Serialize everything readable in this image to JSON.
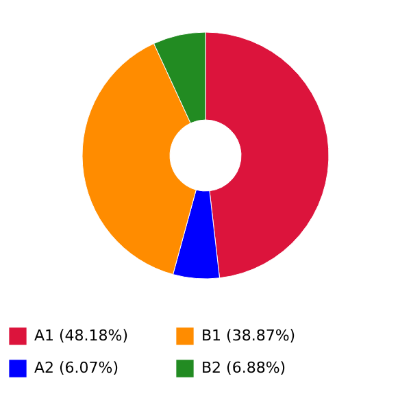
{
  "chart_data": {
    "type": "donut",
    "categories": [
      "A1 (48.18%)",
      "A2 (6.07%)",
      "B1 (38.87%)",
      "B2 (6.88%)"
    ],
    "values": [
      48.18,
      6.07,
      38.87,
      6.88
    ],
    "colors": [
      "#dc143c",
      "#0000ff",
      "#ff8c00",
      "#228b22"
    ],
    "legend": "bottom"
  }
}
